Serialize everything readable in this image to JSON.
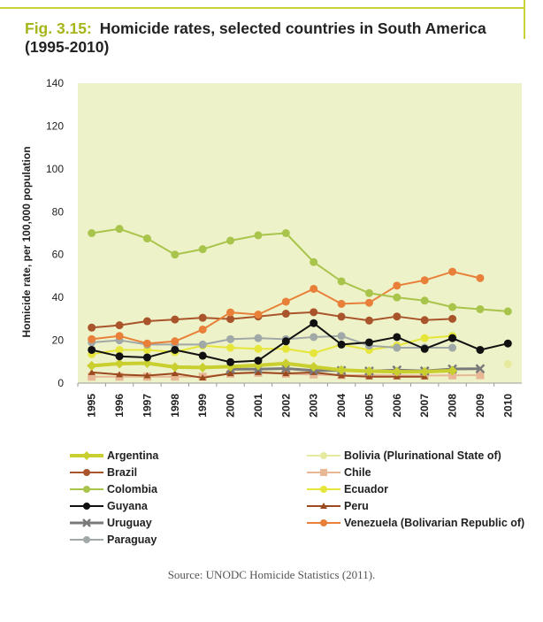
{
  "header": {
    "figure_label": "Fig. 3.15:",
    "title": "Homicide rates, selected countries in South America (1995-2010)"
  },
  "source": "Source: UNODC Homicide Statistics (2011).",
  "chart_data": {
    "type": "line",
    "ylabel": "Homicide rate, per 100,000 population",
    "xlabel": "",
    "ylim": [
      0,
      140
    ],
    "yticks": [
      0,
      20,
      40,
      60,
      80,
      100,
      120,
      140
    ],
    "categories": [
      "1995",
      "1996",
      "1997",
      "1998",
      "1999",
      "2000",
      "2001",
      "2002",
      "2003",
      "2004",
      "2005",
      "2006",
      "2007",
      "2008",
      "2009",
      "2010"
    ],
    "grid": false,
    "legend_position": "bottom",
    "series": [
      {
        "name": "Argentina",
        "color": "#c9cf2e",
        "marker": "diamond",
        "width": 4,
        "values": [
          8.1,
          9.1,
          9.3,
          7.5,
          7.3,
          7.7,
          8.3,
          9.2,
          7.6,
          6.1,
          5.6,
          5.3,
          5.3,
          5.8,
          null,
          null
        ]
      },
      {
        "name": "Bolivia (Plurinational State of)",
        "color": "#e6ea9e",
        "marker": "circle",
        "width": 2,
        "values": [
          null,
          null,
          null,
          null,
          null,
          null,
          null,
          null,
          null,
          null,
          null,
          null,
          null,
          null,
          null,
          8.9
        ]
      },
      {
        "name": "Brazil",
        "color": "#a9542a",
        "marker": "circle",
        "width": 2,
        "values": [
          25.9,
          27.0,
          28.9,
          29.7,
          30.5,
          29.9,
          31.1,
          32.4,
          33.1,
          31.0,
          29.2,
          31.1,
          29.4,
          30.0,
          null,
          null
        ]
      },
      {
        "name": "Chile",
        "color": "#e8b896",
        "marker": "square",
        "width": 2,
        "values": [
          3.0,
          3.0,
          3.0,
          3.0,
          3.0,
          4.4,
          4.8,
          4.4,
          4.0,
          3.7,
          3.7,
          3.6,
          3.5,
          3.6,
          3.7,
          null
        ]
      },
      {
        "name": "Colombia",
        "color": "#a9c44a",
        "marker": "circle",
        "width": 2,
        "values": [
          70,
          72,
          67.5,
          60,
          62.5,
          66.5,
          69,
          70,
          56.5,
          47.5,
          42,
          40,
          38.5,
          35.5,
          34.5,
          33.5
        ]
      },
      {
        "name": "Ecuador",
        "color": "#e6e63a",
        "marker": "circle",
        "width": 2,
        "values": [
          13.5,
          15.5,
          15.5,
          14.5,
          17.5,
          16.5,
          16.0,
          16.0,
          14.0,
          18.0,
          15.5,
          17.5,
          21.0,
          22.0,
          null,
          null
        ]
      },
      {
        "name": "Guyana",
        "color": "#111111",
        "marker": "circle",
        "width": 2,
        "values": [
          15.5,
          12.5,
          12.0,
          15.5,
          12.8,
          9.8,
          10.5,
          19.5,
          28.0,
          18.0,
          19.0,
          21.5,
          16.0,
          21.0,
          15.5,
          18.5
        ]
      },
      {
        "name": "Peru",
        "color": "#9a4a1e",
        "marker": "triangle",
        "width": 2,
        "values": [
          5.0,
          4.0,
          3.5,
          4.5,
          2.5,
          4.5,
          5.0,
          4.5,
          5.0,
          3.5,
          3.0,
          3.0,
          3.0,
          null,
          null,
          null
        ]
      },
      {
        "name": "Uruguay",
        "color": "#7a7a7a",
        "marker": "x",
        "width": 3,
        "values": [
          null,
          null,
          null,
          null,
          null,
          6.5,
          6.5,
          6.8,
          5.9,
          5.9,
          5.6,
          6.1,
          5.7,
          6.6,
          6.7,
          null
        ]
      },
      {
        "name": "Venezuela (Bolivarian Republic of)",
        "color": "#e8803a",
        "marker": "circle",
        "width": 2,
        "values": [
          20.5,
          22.0,
          18.5,
          19.5,
          25.0,
          33.0,
          32.0,
          38.0,
          44.0,
          37.0,
          37.5,
          45.5,
          48.0,
          52.0,
          49.0,
          null
        ]
      },
      {
        "name": "Paraguay",
        "color": "#a0a8a8",
        "marker": "circle",
        "width": 2,
        "values": [
          19.0,
          20.0,
          18.0,
          18.0,
          18.0,
          20.5,
          21.0,
          20.5,
          21.5,
          22.0,
          17.5,
          16.5,
          16.5,
          16.5,
          null,
          null
        ]
      }
    ]
  },
  "legend_order_left": [
    "Argentina",
    "Brazil",
    "Colombia",
    "Guyana",
    "Uruguay",
    "Paraguay"
  ],
  "legend_order_right": [
    "Bolivia (Plurinational State of)",
    "Chile",
    "Ecuador",
    "Peru",
    "Venezuela (Bolivarian Republic of)"
  ]
}
